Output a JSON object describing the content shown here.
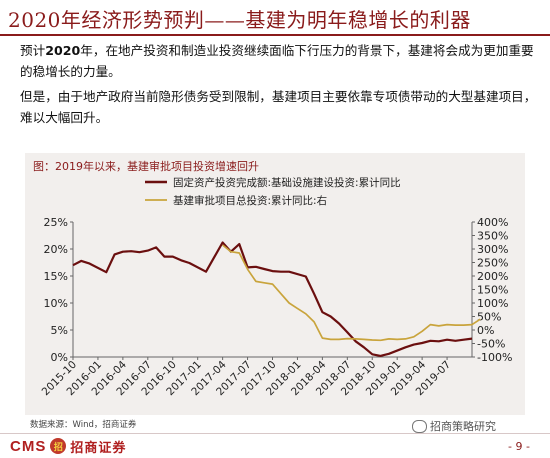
{
  "header": {
    "title": "2020年经济形势预判——基建为明年稳增长的利器"
  },
  "paragraphs": {
    "p1_prefix": "预计",
    "p1_year": "2020",
    "p1_rest": "年，在地产投资和制造业投资继续面临下行压力的背景下，基建将会成为更加重要的稳增长的力量。",
    "p2": "但是，由于地产政府当前隐形债务受到限制，基建项目主要依靠专项债带动的大型基建项目，难以大幅回升。"
  },
  "figure": {
    "title": "图：2019年以来，基建审批项目投资增速回升"
  },
  "source_text": "数据来源：Wind，招商证券",
  "footer": {
    "logo_text": "CMS",
    "logo_mark": "招",
    "logo_cn": "招商证券",
    "wechat_text": "招商策略研究",
    "page": "- 9 -"
  },
  "colors": {
    "accent": "#8a1b1b",
    "series1": "#6b0f0f",
    "series2": "#c9a43c",
    "panel": "#f2efed"
  },
  "chart_data": {
    "type": "line",
    "x_labels": [
      "2015-10",
      "2016-01",
      "2016-04",
      "2016-07",
      "2016-10",
      "2017-01",
      "2017-04",
      "2017-07",
      "2017-10",
      "2018-01",
      "2018-04",
      "2018-07",
      "2018-10",
      "2019-01",
      "2019-04",
      "2019-07"
    ],
    "left_axis": {
      "ticks": [
        "0%",
        "5%",
        "10%",
        "15%",
        "20%",
        "25%"
      ],
      "ylim": [
        0,
        25
      ]
    },
    "right_axis": {
      "ticks": [
        "-100%",
        "-50%",
        "0%",
        "50%",
        "100%",
        "150%",
        "200%",
        "250%",
        "300%",
        "350%",
        "400%"
      ],
      "ylim": [
        -100,
        400
      ]
    },
    "series": [
      {
        "name": "固定资产投资完成额:基础设施建设投资:累计同比",
        "axis": "left",
        "points": [
          [
            "2015-10",
            17.0
          ],
          [
            "2015-11",
            17.8
          ],
          [
            "2015-12",
            17.3
          ],
          [
            "2016-02",
            15.7
          ],
          [
            "2016-03",
            19.0
          ],
          [
            "2016-04",
            19.5
          ],
          [
            "2016-05",
            19.6
          ],
          [
            "2016-06",
            19.4
          ],
          [
            "2016-07",
            19.7
          ],
          [
            "2016-08",
            20.3
          ],
          [
            "2016-09",
            18.6
          ],
          [
            "2016-10",
            18.6
          ],
          [
            "2016-11",
            17.9
          ],
          [
            "2016-12",
            17.4
          ],
          [
            "2017-02",
            15.8
          ],
          [
            "2017-03",
            18.5
          ],
          [
            "2017-04",
            21.2
          ],
          [
            "2017-05",
            19.5
          ],
          [
            "2017-06",
            20.9
          ],
          [
            "2017-07",
            16.6
          ],
          [
            "2017-08",
            16.7
          ],
          [
            "2017-09",
            16.3
          ],
          [
            "2017-10",
            15.9
          ],
          [
            "2017-11",
            15.8
          ],
          [
            "2017-12",
            15.8
          ],
          [
            "2018-02",
            14.9
          ],
          [
            "2018-03",
            11.7
          ],
          [
            "2018-04",
            8.3
          ],
          [
            "2018-05",
            7.5
          ],
          [
            "2018-06",
            6.2
          ],
          [
            "2018-07",
            4.6
          ],
          [
            "2018-08",
            2.9
          ],
          [
            "2018-09",
            1.8
          ],
          [
            "2018-10",
            0.5
          ],
          [
            "2018-11",
            0.2
          ],
          [
            "2018-12",
            0.6
          ],
          [
            "2019-02",
            1.8
          ],
          [
            "2019-03",
            2.3
          ],
          [
            "2019-04",
            2.6
          ],
          [
            "2019-05",
            3.0
          ],
          [
            "2019-06",
            2.9
          ],
          [
            "2019-07",
            3.2
          ],
          [
            "2019-08",
            3.0
          ],
          [
            "2019-09",
            3.2
          ],
          [
            "2019-10",
            3.4
          ]
        ]
      },
      {
        "name": "基建审批项目总投资:累计同比:右",
        "axis": "right",
        "points": [
          [
            "2017-04",
            315
          ],
          [
            "2017-05",
            290
          ],
          [
            "2017-06",
            285
          ],
          [
            "2017-07",
            225
          ],
          [
            "2017-08",
            180
          ],
          [
            "2017-09",
            175
          ],
          [
            "2017-10",
            170
          ],
          [
            "2017-11",
            135
          ],
          [
            "2017-12",
            100
          ],
          [
            "2018-01",
            80
          ],
          [
            "2018-02",
            60
          ],
          [
            "2018-03",
            30
          ],
          [
            "2018-04",
            -30
          ],
          [
            "2018-05",
            -35
          ],
          [
            "2018-06",
            -35
          ],
          [
            "2018-07",
            -32
          ],
          [
            "2018-08",
            -33
          ],
          [
            "2018-09",
            -35
          ],
          [
            "2018-10",
            -37
          ],
          [
            "2018-11",
            -38
          ],
          [
            "2018-12",
            -33
          ],
          [
            "2019-01",
            -35
          ],
          [
            "2019-02",
            -33
          ],
          [
            "2019-03",
            -25
          ],
          [
            "2019-04",
            -5
          ],
          [
            "2019-05",
            20
          ],
          [
            "2019-06",
            15
          ],
          [
            "2019-07",
            20
          ],
          [
            "2019-08",
            18
          ],
          [
            "2019-09",
            18
          ],
          [
            "2019-10",
            20
          ],
          [
            "2019-11",
            40
          ]
        ]
      }
    ],
    "legend_position": "top",
    "grid": false
  }
}
